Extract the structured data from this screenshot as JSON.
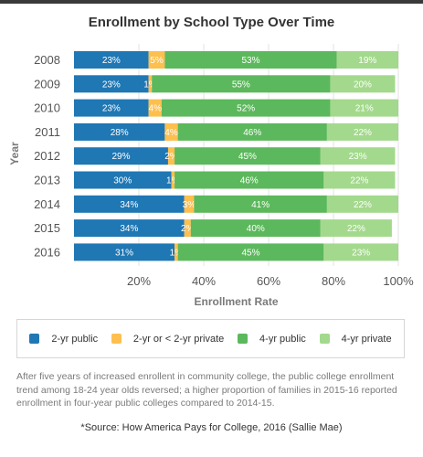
{
  "chart_data": {
    "type": "bar",
    "orientation": "horizontal",
    "stacked": true,
    "title": "Enrollment by School Type Over Time",
    "xlabel": "Enrollment Rate",
    "ylabel": "Year",
    "categories": [
      "2008",
      "2009",
      "2010",
      "2011",
      "2012",
      "2013",
      "2014",
      "2015",
      "2016"
    ],
    "xticks": [
      "20%",
      "40%",
      "60%",
      "80%",
      "100%"
    ],
    "xlim": [
      0,
      100
    ],
    "grid": true,
    "legend_position": "bottom",
    "series": [
      {
        "name": "2-yr public",
        "color": "#1f77b4",
        "values": [
          23,
          23,
          23,
          28,
          29,
          30,
          34,
          34,
          31
        ]
      },
      {
        "name": "2-yr or < 2-yr private",
        "color": "#fdbf4e",
        "values": [
          5,
          1,
          4,
          4,
          2,
          1,
          3,
          2,
          1
        ]
      },
      {
        "name": "4-yr public",
        "color": "#5cb85c",
        "values": [
          53,
          55,
          52,
          46,
          45,
          46,
          41,
          40,
          45
        ]
      },
      {
        "name": "4-yr private",
        "color": "#a3d98c",
        "values": [
          19,
          20,
          21,
          22,
          23,
          22,
          22,
          22,
          23
        ]
      }
    ]
  },
  "footnote": "After five years of increased enrollent in community college, the public college enrollment trend among 18-24 year olds reversed; a higher proportion of families in 2015-16 reported enrollment in four-year public colleges compared to 2014-15.",
  "source": "*Source: How America Pays for College, 2016 (Sallie Mae)"
}
